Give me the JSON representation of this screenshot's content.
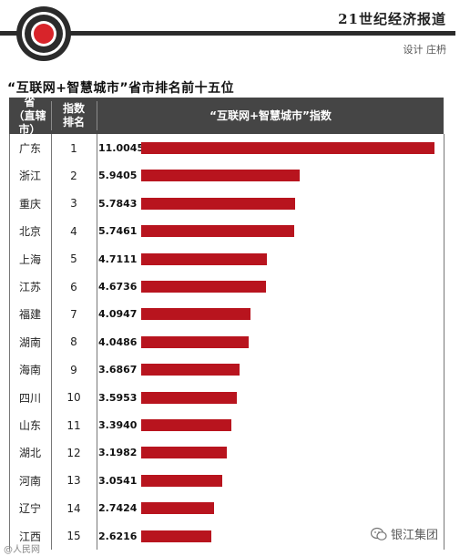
{
  "header": {
    "brand": "21世纪经济报道",
    "credit": "设计 庄枬"
  },
  "chart_data": {
    "type": "bar",
    "orientation": "horizontal",
    "title": "“互联网+智慧城市”省市排名前十五位",
    "columns": [
      "省（直辖市）",
      "指数排名",
      "“互联网+智慧城市”指数"
    ],
    "categories": [
      "广东",
      "浙江",
      "重庆",
      "北京",
      "上海",
      "江苏",
      "福建",
      "湖南",
      "海南",
      "四川",
      "山东",
      "湖北",
      "河南",
      "辽宁",
      "江西"
    ],
    "ranks": [
      "1",
      "2",
      "3",
      "4",
      "5",
      "6",
      "7",
      "8",
      "9",
      "10",
      "11",
      "12",
      "13",
      "14",
      "15"
    ],
    "values": [
      11.0045,
      5.9405,
      5.7843,
      5.7461,
      4.7111,
      4.6736,
      4.0947,
      4.0486,
      3.6867,
      3.5953,
      3.394,
      3.1982,
      3.0541,
      2.7424,
      2.6216
    ],
    "value_labels": [
      "11.0045",
      "5.9405",
      "5.7843",
      "5.7461",
      "4.7111",
      "4.6736",
      "4.0947",
      "4.0486",
      "3.6867",
      "3.5953",
      "3.3940",
      "3.1982",
      "3.0541",
      "2.7424",
      "2.6216"
    ],
    "bar_color": "#b8141e"
  },
  "table_head": {
    "col1_line1": "省",
    "col1_line2": "（直辖市）",
    "col2_line1": "指数",
    "col2_line2": "排名",
    "col3": "“互联网+智慧城市”指数"
  },
  "watermarks": {
    "left": "@人民网",
    "right": "银江集团"
  },
  "colors": {
    "header_bg": "#454545",
    "logo_red": "#d8242a",
    "bar": "#b8141e"
  }
}
